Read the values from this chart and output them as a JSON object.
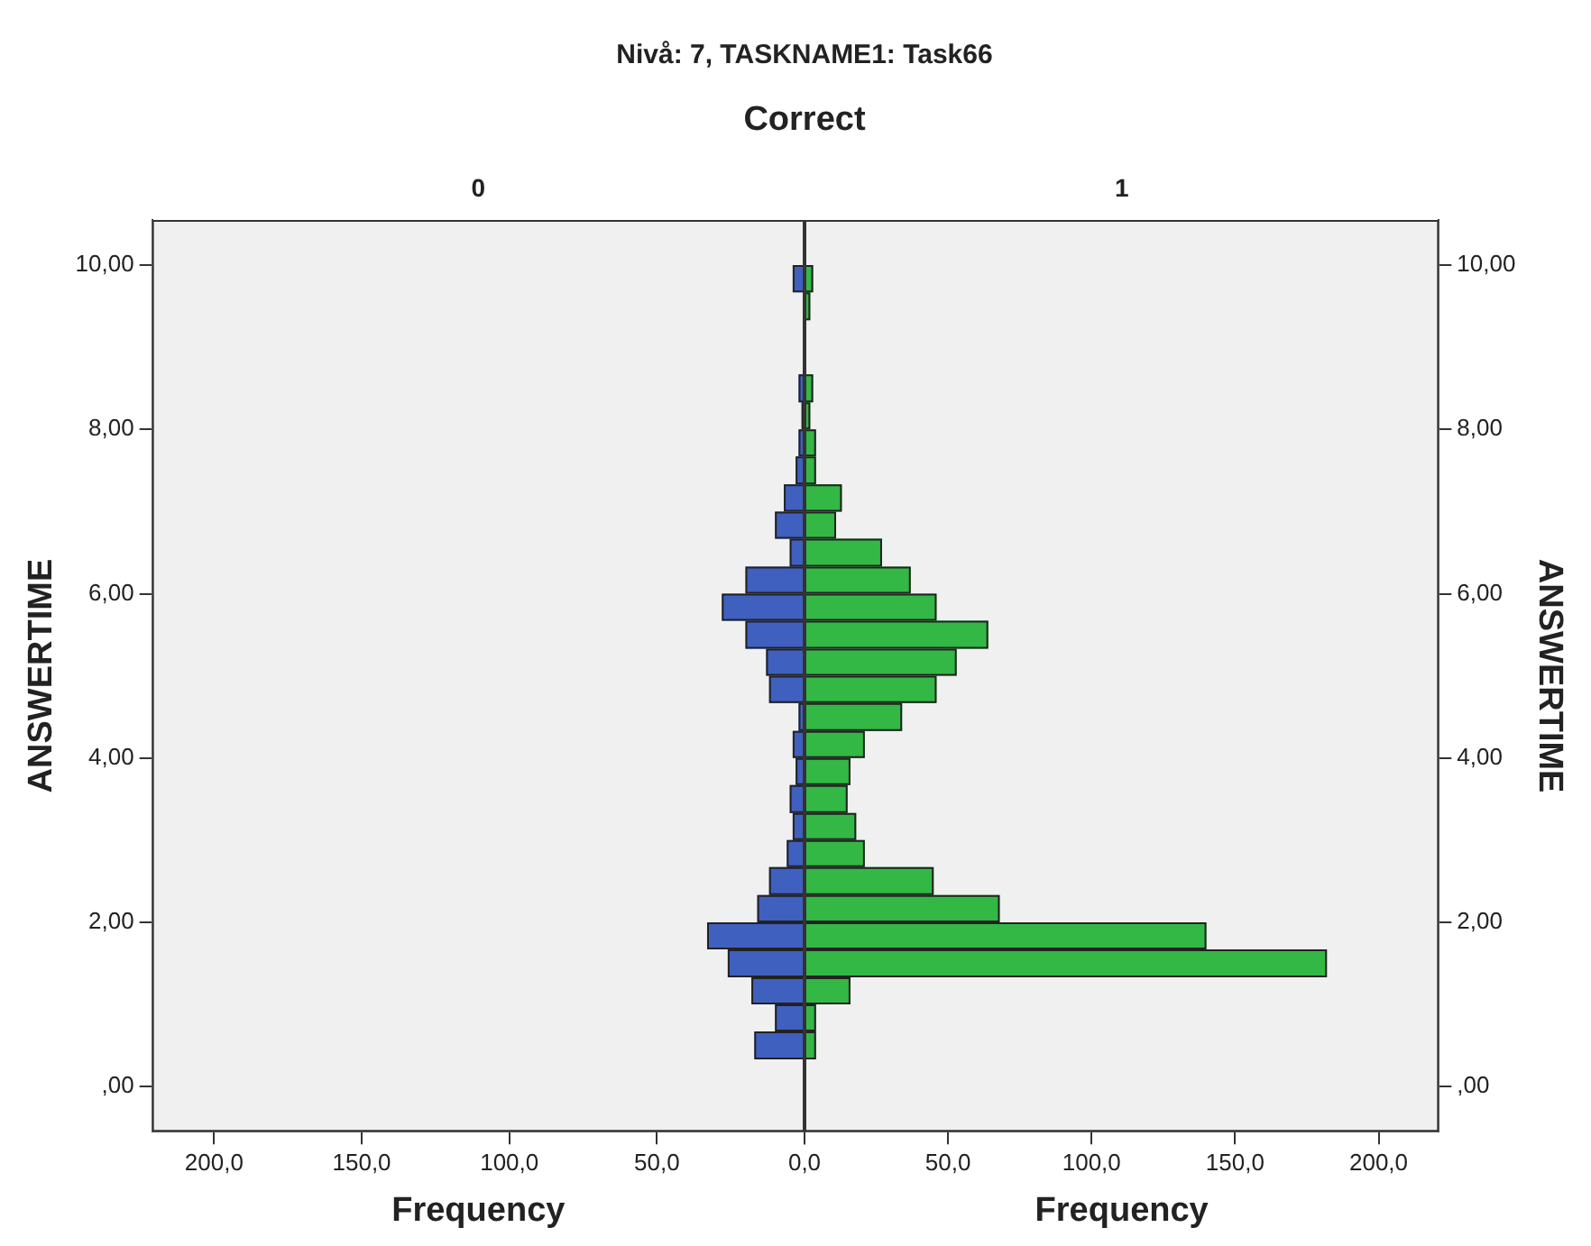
{
  "chart_data": [
    {
      "type": "histogram",
      "title": "Nivå: 7, TASKNAME1: Task66",
      "subtitle": "Correct",
      "annotations": [
        "0"
      ],
      "orientation": "horizontal",
      "xlabel": "Frequency",
      "ylabel": "ANSWERTIME",
      "bins": [
        0.33,
        0.67,
        1,
        1.33,
        1.67,
        2,
        2.33,
        2.67,
        3,
        3.33,
        3.67,
        4,
        4.33,
        4.67,
        5,
        5.33,
        5.67,
        6,
        6.33,
        6.67,
        7,
        7.33,
        7.67,
        8,
        8.33,
        8.67,
        9.67,
        10
      ],
      "values": [
        17,
        10,
        18,
        26,
        33,
        16,
        12,
        6,
        4,
        5,
        3,
        4,
        2,
        12,
        13,
        20,
        28,
        20,
        5,
        10,
        7,
        3,
        2,
        1,
        2,
        0,
        4
      ],
      "color": "#4060c0",
      "xlim": [
        221,
        0
      ],
      "xticks": [
        {
          "value": 0,
          "label": "0,0"
        },
        {
          "value": 50,
          "label": "50,0"
        },
        {
          "value": 100,
          "label": "100,0"
        },
        {
          "value": 150,
          "label": "150,0"
        },
        {
          "value": 200,
          "label": "200,0"
        }
      ],
      "ylim": [
        -0.55,
        10.55
      ],
      "yticks": [
        {
          "value": 0,
          "label": ",00"
        },
        {
          "value": 2,
          "label": "2,00"
        },
        {
          "value": 4,
          "label": "4,00"
        },
        {
          "value": 6,
          "label": "6,00"
        },
        {
          "value": 8,
          "label": "8,00"
        },
        {
          "value": 10,
          "label": "10,00"
        }
      ]
    },
    {
      "type": "histogram",
      "annotations": [
        "1"
      ],
      "orientation": "horizontal",
      "xlabel": "Frequency",
      "ylabel": "ANSWERTIME",
      "bins": [
        0.33,
        0.67,
        1,
        1.33,
        1.67,
        2,
        2.33,
        2.67,
        3,
        3.33,
        3.67,
        4,
        4.33,
        4.67,
        5,
        5.33,
        5.67,
        6,
        6.33,
        6.67,
        7,
        7.33,
        7.67,
        8,
        8.33,
        8.67,
        9.33,
        9.67,
        10
      ],
      "values": [
        4,
        4,
        16,
        182,
        140,
        68,
        45,
        21,
        18,
        15,
        16,
        21,
        34,
        46,
        53,
        64,
        46,
        37,
        27,
        11,
        13,
        4,
        4,
        2,
        3,
        null,
        2,
        3
      ],
      "color": "#33b845",
      "xlim": [
        0,
        221
      ],
      "xticks": [
        {
          "value": 0,
          "label": null
        },
        {
          "value": 50,
          "label": "50,0"
        },
        {
          "value": 100,
          "label": "100,0"
        },
        {
          "value": 150,
          "label": "150,0"
        },
        {
          "value": 200,
          "label": "200,0"
        }
      ],
      "ylim": [
        -0.55,
        10.55
      ],
      "yticks": [
        {
          "value": 0,
          "label": ",00"
        },
        {
          "value": 2,
          "label": "2,00"
        },
        {
          "value": 4,
          "label": "4,00"
        },
        {
          "value": 6,
          "label": "6,00"
        },
        {
          "value": 8,
          "label": "8,00"
        },
        {
          "value": 10,
          "label": "10,00"
        }
      ]
    }
  ]
}
